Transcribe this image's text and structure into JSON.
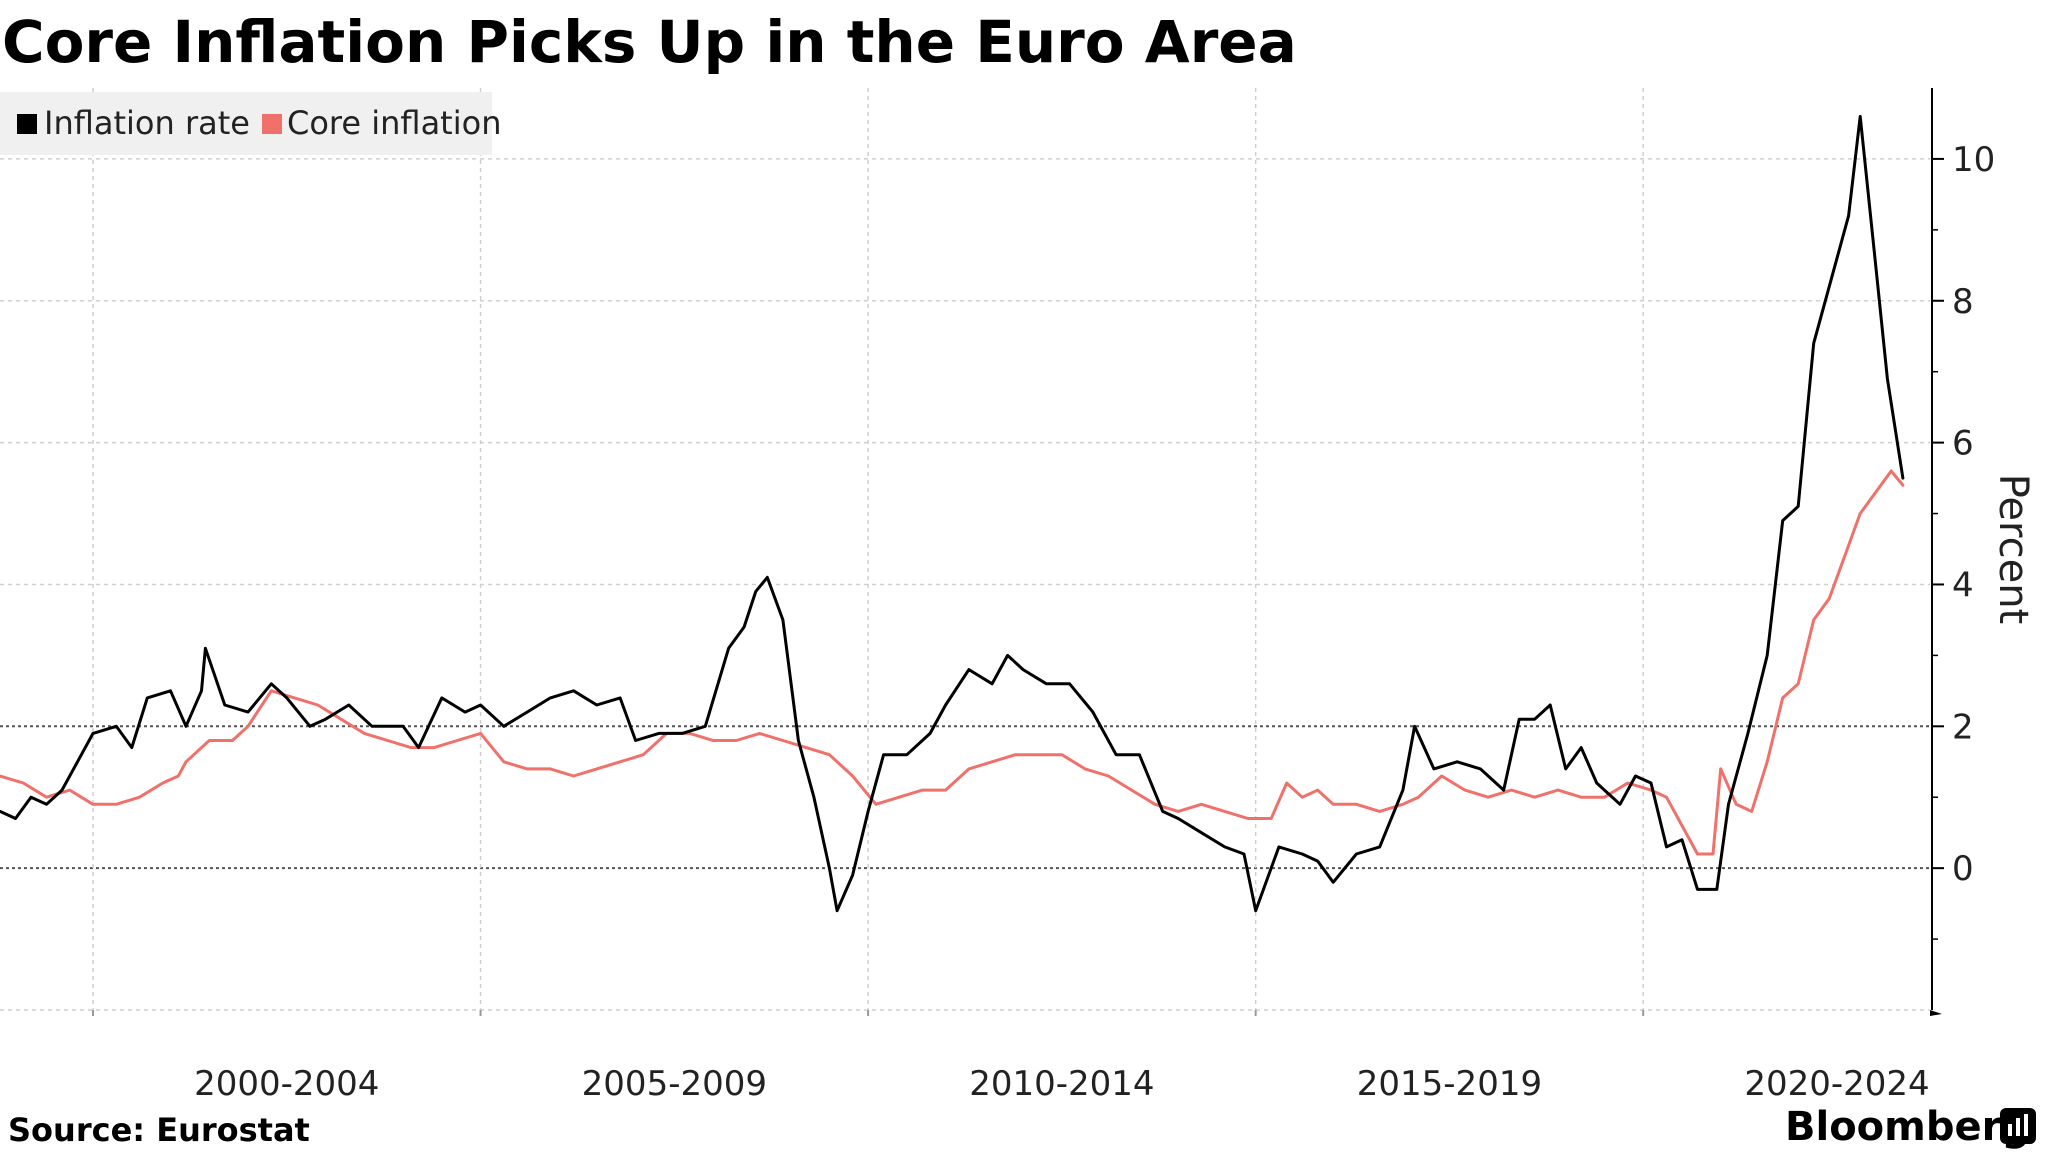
{
  "chart_data": {
    "type": "line",
    "title": "Core Inflation Picks Up in the Euro Area",
    "ylabel": "Percent",
    "xlabel": "",
    "ylim": [
      -2,
      11
    ],
    "xlim": [
      1998.8,
      2023.7
    ],
    "yticks": [
      0,
      2,
      4,
      6,
      8,
      10
    ],
    "categories": [
      "2000-2004",
      "2005-2009",
      "2010-2014",
      "2015-2019",
      "2020-2024"
    ],
    "year_separators": [
      2000,
      2005,
      2010,
      2015,
      2020
    ],
    "legend_position": "top-left",
    "series": [
      {
        "name": "Inflation rate",
        "color": "#000000",
        "points": [
          [
            1998.8,
            0.8
          ],
          [
            1999.0,
            0.7
          ],
          [
            1999.2,
            1.0
          ],
          [
            1999.4,
            0.9
          ],
          [
            1999.6,
            1.1
          ],
          [
            1999.8,
            1.5
          ],
          [
            2000.0,
            1.9
          ],
          [
            2000.3,
            2.0
          ],
          [
            2000.5,
            1.7
          ],
          [
            2000.7,
            2.4
          ],
          [
            2001.0,
            2.5
          ],
          [
            2001.2,
            2.0
          ],
          [
            2001.4,
            2.5
          ],
          [
            2001.45,
            3.1
          ],
          [
            2001.7,
            2.3
          ],
          [
            2002.0,
            2.2
          ],
          [
            2002.3,
            2.6
          ],
          [
            2002.5,
            2.4
          ],
          [
            2002.8,
            2.0
          ],
          [
            2003.0,
            2.1
          ],
          [
            2003.3,
            2.3
          ],
          [
            2003.6,
            2.0
          ],
          [
            2004.0,
            2.0
          ],
          [
            2004.2,
            1.7
          ],
          [
            2004.5,
            2.4
          ],
          [
            2004.8,
            2.2
          ],
          [
            2005.0,
            2.3
          ],
          [
            2005.3,
            2.0
          ],
          [
            2005.6,
            2.2
          ],
          [
            2005.9,
            2.4
          ],
          [
            2006.2,
            2.5
          ],
          [
            2006.5,
            2.3
          ],
          [
            2006.8,
            2.4
          ],
          [
            2007.0,
            1.8
          ],
          [
            2007.3,
            1.9
          ],
          [
            2007.6,
            1.9
          ],
          [
            2007.9,
            2.0
          ],
          [
            2008.2,
            3.1
          ],
          [
            2008.4,
            3.4
          ],
          [
            2008.55,
            3.9
          ],
          [
            2008.7,
            4.1
          ],
          [
            2008.9,
            3.5
          ],
          [
            2009.1,
            1.8
          ],
          [
            2009.3,
            1.0
          ],
          [
            2009.5,
            0.0
          ],
          [
            2009.6,
            -0.6
          ],
          [
            2009.8,
            -0.1
          ],
          [
            2010.0,
            0.8
          ],
          [
            2010.2,
            1.6
          ],
          [
            2010.5,
            1.6
          ],
          [
            2010.8,
            1.9
          ],
          [
            2011.0,
            2.3
          ],
          [
            2011.3,
            2.8
          ],
          [
            2011.6,
            2.6
          ],
          [
            2011.8,
            3.0
          ],
          [
            2012.0,
            2.8
          ],
          [
            2012.3,
            2.6
          ],
          [
            2012.6,
            2.6
          ],
          [
            2012.9,
            2.2
          ],
          [
            2013.2,
            1.6
          ],
          [
            2013.5,
            1.6
          ],
          [
            2013.8,
            0.8
          ],
          [
            2014.0,
            0.7
          ],
          [
            2014.3,
            0.5
          ],
          [
            2014.6,
            0.3
          ],
          [
            2014.85,
            0.2
          ],
          [
            2015.0,
            -0.6
          ],
          [
            2015.3,
            0.3
          ],
          [
            2015.6,
            0.2
          ],
          [
            2015.8,
            0.1
          ],
          [
            2016.0,
            -0.2
          ],
          [
            2016.3,
            0.2
          ],
          [
            2016.6,
            0.3
          ],
          [
            2016.9,
            1.1
          ],
          [
            2017.05,
            2.0
          ],
          [
            2017.3,
            1.4
          ],
          [
            2017.6,
            1.5
          ],
          [
            2017.9,
            1.4
          ],
          [
            2018.2,
            1.1
          ],
          [
            2018.4,
            2.1
          ],
          [
            2018.6,
            2.1
          ],
          [
            2018.8,
            2.3
          ],
          [
            2019.0,
            1.4
          ],
          [
            2019.2,
            1.7
          ],
          [
            2019.4,
            1.2
          ],
          [
            2019.7,
            0.9
          ],
          [
            2019.9,
            1.3
          ],
          [
            2020.1,
            1.2
          ],
          [
            2020.3,
            0.3
          ],
          [
            2020.5,
            0.4
          ],
          [
            2020.7,
            -0.3
          ],
          [
            2020.95,
            -0.3
          ],
          [
            2021.1,
            0.9
          ],
          [
            2021.35,
            1.9
          ],
          [
            2021.6,
            3.0
          ],
          [
            2021.8,
            4.9
          ],
          [
            2022.0,
            5.1
          ],
          [
            2022.2,
            7.4
          ],
          [
            2022.5,
            8.6
          ],
          [
            2022.65,
            9.2
          ],
          [
            2022.8,
            10.6
          ],
          [
            2023.0,
            8.5
          ],
          [
            2023.15,
            6.9
          ],
          [
            2023.35,
            5.5
          ]
        ]
      },
      {
        "name": "Core inflation",
        "color": "#f0706a",
        "points": [
          [
            1998.8,
            1.3
          ],
          [
            1999.1,
            1.2
          ],
          [
            1999.4,
            1.0
          ],
          [
            1999.7,
            1.1
          ],
          [
            2000.0,
            0.9
          ],
          [
            2000.3,
            0.9
          ],
          [
            2000.6,
            1.0
          ],
          [
            2000.9,
            1.2
          ],
          [
            2001.1,
            1.3
          ],
          [
            2001.2,
            1.5
          ],
          [
            2001.5,
            1.8
          ],
          [
            2001.8,
            1.8
          ],
          [
            2002.0,
            2.0
          ],
          [
            2002.3,
            2.5
          ],
          [
            2002.6,
            2.4
          ],
          [
            2002.9,
            2.3
          ],
          [
            2003.2,
            2.1
          ],
          [
            2003.5,
            1.9
          ],
          [
            2003.8,
            1.8
          ],
          [
            2004.1,
            1.7
          ],
          [
            2004.4,
            1.7
          ],
          [
            2004.7,
            1.8
          ],
          [
            2005.0,
            1.9
          ],
          [
            2005.3,
            1.5
          ],
          [
            2005.6,
            1.4
          ],
          [
            2005.9,
            1.4
          ],
          [
            2006.2,
            1.3
          ],
          [
            2006.5,
            1.4
          ],
          [
            2006.8,
            1.5
          ],
          [
            2007.1,
            1.6
          ],
          [
            2007.4,
            1.9
          ],
          [
            2007.7,
            1.9
          ],
          [
            2008.0,
            1.8
          ],
          [
            2008.3,
            1.8
          ],
          [
            2008.6,
            1.9
          ],
          [
            2008.9,
            1.8
          ],
          [
            2009.2,
            1.7
          ],
          [
            2009.5,
            1.6
          ],
          [
            2009.8,
            1.3
          ],
          [
            2010.1,
            0.9
          ],
          [
            2010.4,
            1.0
          ],
          [
            2010.7,
            1.1
          ],
          [
            2011.0,
            1.1
          ],
          [
            2011.3,
            1.4
          ],
          [
            2011.6,
            1.5
          ],
          [
            2011.9,
            1.6
          ],
          [
            2012.2,
            1.6
          ],
          [
            2012.5,
            1.6
          ],
          [
            2012.8,
            1.4
          ],
          [
            2013.1,
            1.3
          ],
          [
            2013.4,
            1.1
          ],
          [
            2013.7,
            0.9
          ],
          [
            2014.0,
            0.8
          ],
          [
            2014.3,
            0.9
          ],
          [
            2014.6,
            0.8
          ],
          [
            2014.9,
            0.7
          ],
          [
            2015.2,
            0.7
          ],
          [
            2015.4,
            1.2
          ],
          [
            2015.6,
            1.0
          ],
          [
            2015.8,
            1.1
          ],
          [
            2016.0,
            0.9
          ],
          [
            2016.3,
            0.9
          ],
          [
            2016.6,
            0.8
          ],
          [
            2016.9,
            0.9
          ],
          [
            2017.1,
            1.0
          ],
          [
            2017.4,
            1.3
          ],
          [
            2017.7,
            1.1
          ],
          [
            2018.0,
            1.0
          ],
          [
            2018.3,
            1.1
          ],
          [
            2018.6,
            1.0
          ],
          [
            2018.9,
            1.1
          ],
          [
            2019.2,
            1.0
          ],
          [
            2019.5,
            1.0
          ],
          [
            2019.8,
            1.2
          ],
          [
            2020.1,
            1.1
          ],
          [
            2020.3,
            1.0
          ],
          [
            2020.5,
            0.6
          ],
          [
            2020.7,
            0.2
          ],
          [
            2020.9,
            0.2
          ],
          [
            2021.0,
            1.4
          ],
          [
            2021.2,
            0.9
          ],
          [
            2021.4,
            0.8
          ],
          [
            2021.6,
            1.5
          ],
          [
            2021.8,
            2.4
          ],
          [
            2022.0,
            2.6
          ],
          [
            2022.2,
            3.5
          ],
          [
            2022.4,
            3.8
          ],
          [
            2022.6,
            4.4
          ],
          [
            2022.8,
            5.0
          ],
          [
            2023.0,
            5.3
          ],
          [
            2023.2,
            5.6
          ],
          [
            2023.35,
            5.4
          ]
        ]
      }
    ]
  },
  "footer": {
    "source": "Source: Eurostat",
    "brand": "Bloomberg"
  }
}
